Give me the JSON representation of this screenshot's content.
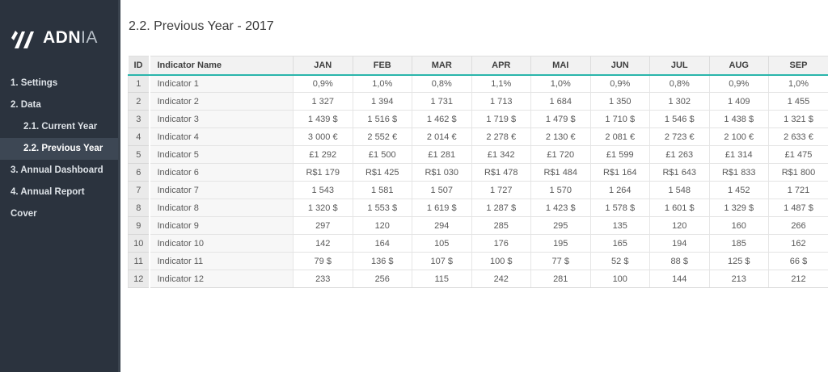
{
  "brand": {
    "logo_bold": "ADN",
    "logo_light": "IA"
  },
  "sidebar": {
    "items": [
      {
        "key": "settings",
        "label": "1. Settings",
        "indent": false,
        "active": false
      },
      {
        "key": "data",
        "label": "2. Data",
        "indent": false,
        "active": false
      },
      {
        "key": "current-year",
        "label": "2.1. Current Year",
        "indent": true,
        "active": false
      },
      {
        "key": "previous-year",
        "label": "2.2. Previous Year",
        "indent": true,
        "active": true
      },
      {
        "key": "annual-dashboard",
        "label": "3. Annual Dashboard",
        "indent": false,
        "active": false
      },
      {
        "key": "annual-report",
        "label": "4. Annual Report",
        "indent": false,
        "active": false
      },
      {
        "key": "cover",
        "label": "Cover",
        "indent": false,
        "active": false
      }
    ]
  },
  "header": {
    "title": "2.2. Previous Year - 2017"
  },
  "table": {
    "columns": [
      "ID",
      "Indicator Name",
      "JAN",
      "FEB",
      "MAR",
      "APR",
      "MAI",
      "JUN",
      "JUL",
      "AUG",
      "SEP"
    ],
    "rows": [
      {
        "id": "1",
        "name": "Indicator 1",
        "values": [
          "0,9%",
          "1,0%",
          "0,8%",
          "1,1%",
          "1,0%",
          "0,9%",
          "0,8%",
          "0,9%",
          "1,0%"
        ]
      },
      {
        "id": "2",
        "name": "Indicator 2",
        "values": [
          "1 327",
          "1 394",
          "1 731",
          "1 713",
          "1 684",
          "1 350",
          "1 302",
          "1 409",
          "1 455"
        ]
      },
      {
        "id": "3",
        "name": "Indicator 3",
        "values": [
          "1 439 $",
          "1 516 $",
          "1 462 $",
          "1 719 $",
          "1 479 $",
          "1 710 $",
          "1 546 $",
          "1 438 $",
          "1 321 $"
        ]
      },
      {
        "id": "4",
        "name": "Indicator 4",
        "values": [
          "3 000 €",
          "2 552 €",
          "2 014 €",
          "2 278 €",
          "2 130 €",
          "2 081 €",
          "2 723 €",
          "2 100 €",
          "2 633 €"
        ]
      },
      {
        "id": "5",
        "name": "Indicator 5",
        "values": [
          "£1 292",
          "£1 500",
          "£1 281",
          "£1 342",
          "£1 720",
          "£1 599",
          "£1 263",
          "£1 314",
          "£1 475"
        ]
      },
      {
        "id": "6",
        "name": "Indicator 6",
        "values": [
          "R$1 179",
          "R$1 425",
          "R$1 030",
          "R$1 478",
          "R$1 484",
          "R$1 164",
          "R$1 643",
          "R$1 833",
          "R$1 800"
        ]
      },
      {
        "id": "7",
        "name": "Indicator 7",
        "values": [
          "1 543",
          "1 581",
          "1 507",
          "1 727",
          "1 570",
          "1 264",
          "1 548",
          "1 452",
          "1 721"
        ]
      },
      {
        "id": "8",
        "name": "Indicator 8",
        "values": [
          "1 320 $",
          "1 553 $",
          "1 619 $",
          "1 287 $",
          "1 423 $",
          "1 578 $",
          "1 601 $",
          "1 329 $",
          "1 487 $"
        ]
      },
      {
        "id": "9",
        "name": "Indicator 9",
        "values": [
          "297",
          "120",
          "294",
          "285",
          "295",
          "135",
          "120",
          "160",
          "266"
        ]
      },
      {
        "id": "10",
        "name": "Indicator 10",
        "values": [
          "142",
          "164",
          "105",
          "176",
          "195",
          "165",
          "194",
          "185",
          "162"
        ]
      },
      {
        "id": "11",
        "name": "Indicator 11",
        "values": [
          "79 $",
          "136 $",
          "107 $",
          "100 $",
          "77 $",
          "52 $",
          "88 $",
          "125 $",
          "66 $"
        ]
      },
      {
        "id": "12",
        "name": "Indicator 12",
        "values": [
          "233",
          "256",
          "115",
          "242",
          "281",
          "100",
          "144",
          "213",
          "212"
        ]
      }
    ]
  },
  "colors": {
    "accent_teal": "#2ab5ab",
    "sidebar_bg": "#2b333e",
    "sidebar_active_bg": "#3d4754"
  }
}
